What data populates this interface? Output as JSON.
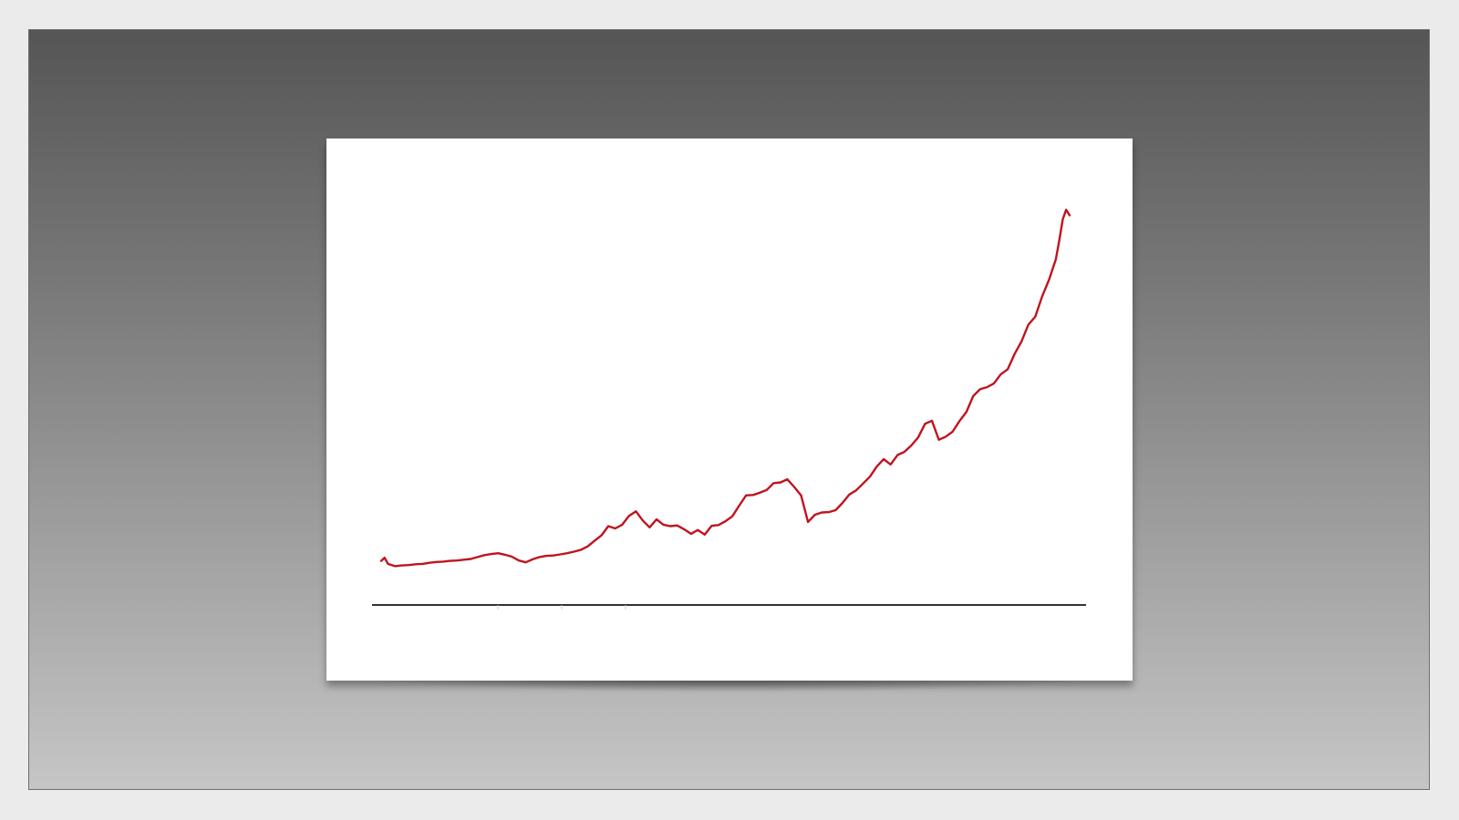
{
  "colors": {
    "series": "#c0141e",
    "axis": "#333333",
    "card": "#ffffff"
  },
  "chart_data": {
    "type": "line",
    "title": "",
    "xlabel": "",
    "ylabel": "",
    "x_ticks_visible": false,
    "y_ticks_visible": false,
    "grid": false,
    "legend": "none",
    "xlim": [
      0,
      100
    ],
    "ylim": [
      0,
      100
    ],
    "series": [
      {
        "x": [
          0,
          0.5,
          1,
          2,
          3,
          4,
          5,
          6,
          7,
          8,
          9,
          10,
          11,
          12,
          13,
          14,
          15,
          16,
          17,
          18,
          19,
          20,
          21,
          22,
          23,
          24,
          25,
          26,
          27,
          28,
          29,
          30,
          31,
          32,
          33,
          34,
          35,
          36,
          37,
          38,
          39,
          40,
          41,
          42,
          43,
          44,
          45,
          46,
          47,
          48,
          49,
          50,
          51,
          52,
          53,
          54,
          55,
          56,
          57,
          58,
          59,
          60,
          61,
          62,
          63,
          64,
          65,
          66,
          67,
          68,
          69,
          70,
          71,
          72,
          73,
          74,
          75,
          76,
          77,
          78,
          79,
          80,
          81,
          82,
          83,
          84,
          85,
          86,
          87,
          88,
          89,
          90,
          91,
          92,
          93,
          94,
          95,
          96,
          97,
          98,
          98.5,
          99,
          99.5,
          100
        ],
        "y": [
          6.8,
          7.6,
          6.0,
          5.4,
          5.6,
          5.7,
          5.9,
          6.0,
          6.3,
          6.5,
          6.6,
          6.8,
          6.9,
          7.1,
          7.3,
          7.8,
          8.3,
          8.6,
          8.8,
          8.4,
          7.9,
          6.9,
          6.4,
          7.2,
          7.8,
          8.1,
          8.2,
          8.5,
          8.8,
          9.2,
          9.7,
          10.6,
          12.1,
          13.5,
          15.9,
          15.3,
          16.3,
          18.6,
          19.8,
          17.4,
          15.6,
          17.7,
          16.3,
          15.9,
          16.1,
          15.1,
          13.9,
          14.9,
          13.7,
          16.0,
          16.2,
          17.2,
          18.5,
          21.3,
          24.0,
          24.1,
          24.7,
          25.4,
          27.2,
          27.4,
          28.2,
          26.2,
          24.0,
          17.0,
          18.9,
          19.5,
          19.6,
          20.1,
          22.0,
          24.2,
          25.3,
          27.1,
          28.9,
          31.6,
          33.5,
          32.1,
          34.6,
          35.4,
          37.1,
          39.2,
          42.8,
          43.6,
          38.6,
          39.4,
          40.7,
          43.5,
          45.9,
          50.1,
          51.9,
          52.4,
          53.4,
          55.8,
          57.1,
          61.1,
          64.4,
          68.8,
          70.9,
          76.2,
          80.6,
          86.0,
          91.0,
          96.5,
          99.0,
          97.5
        ]
      }
    ]
  }
}
